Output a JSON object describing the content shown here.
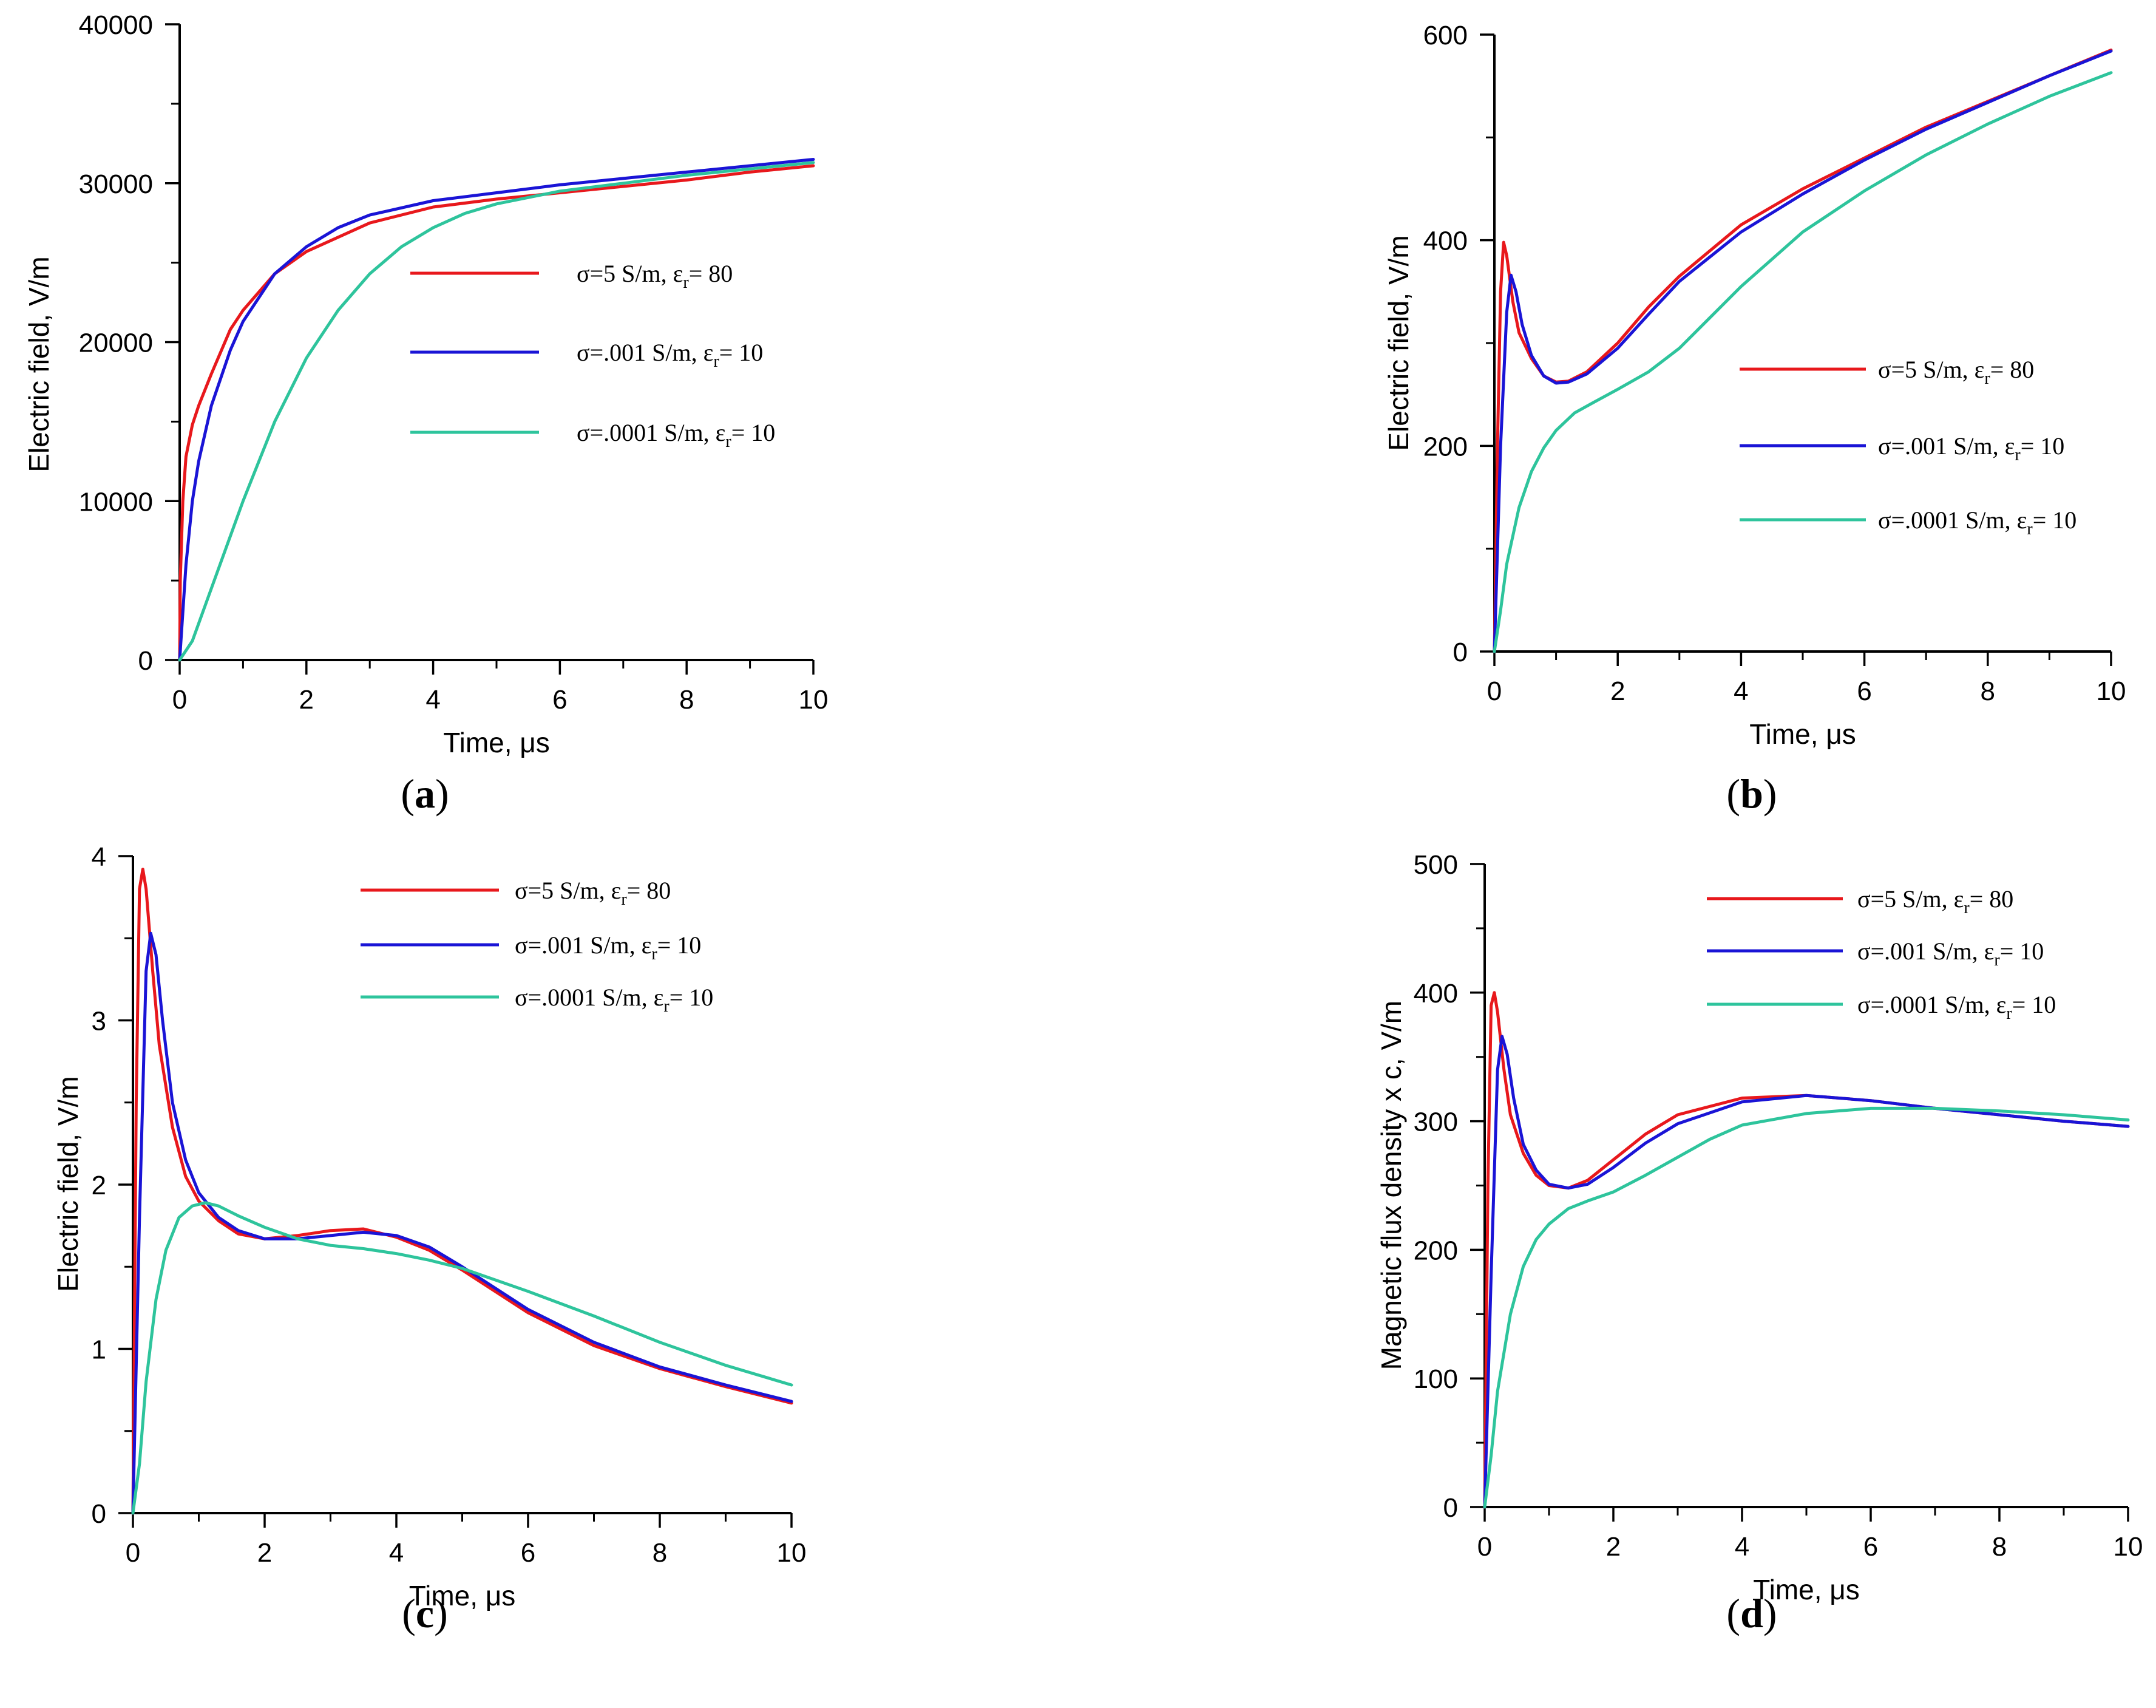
{
  "figure": {
    "colors": {
      "red": "#e8181c",
      "blue": "#1a14d6",
      "teal": "#2ec49c",
      "axis": "#000000"
    }
  },
  "chart_data": [
    {
      "panel": "a",
      "caption": "a",
      "type": "line",
      "xlabel": "Time, μs",
      "ylabel": "Electric field, V/m",
      "xlim": [
        0,
        10
      ],
      "ylim": [
        0,
        40000
      ],
      "xticks": [
        0,
        2,
        4,
        6,
        8,
        10
      ],
      "xtick_labels": [
        "0",
        "2",
        "4",
        "6",
        "8",
        "10"
      ],
      "yticks": [
        0,
        10000,
        20000,
        30000,
        40000
      ],
      "ytick_labels": [
        "0",
        "10000",
        "20000",
        "30000",
        "40000"
      ],
      "x_minor": 1,
      "y_minor": 5000,
      "series": [
        {
          "name": "σ=5 S/m, ε",
          "sub": "r",
          "suffix": "= 80",
          "color": "#e8181c",
          "x": [
            0,
            0.01,
            0.05,
            0.1,
            0.2,
            0.3,
            0.5,
            0.8,
            1.0,
            1.5,
            2.0,
            3.0,
            4.0,
            5.0,
            6.0,
            7.0,
            8.0,
            9.0,
            10.0
          ],
          "y": [
            0,
            5000,
            10000,
            12800,
            14800,
            16000,
            18000,
            20800,
            22000,
            24300,
            25700,
            27500,
            28500,
            29000,
            29400,
            29800,
            30200,
            30700,
            31100
          ]
        },
        {
          "name": "σ=.001 S/m, ε",
          "sub": "r",
          "suffix": "= 10",
          "color": "#1a14d6",
          "x": [
            0,
            0.05,
            0.1,
            0.2,
            0.3,
            0.5,
            0.8,
            1.0,
            1.5,
            2.0,
            2.5,
            3.0,
            4.0,
            5.0,
            6.0,
            7.0,
            8.0,
            9.0,
            10.0
          ],
          "y": [
            0,
            3000,
            6000,
            10000,
            12500,
            16000,
            19500,
            21300,
            24300,
            26000,
            27200,
            28000,
            28900,
            29400,
            29900,
            30300,
            30700,
            31100,
            31500
          ]
        },
        {
          "name": "σ=.0001 S/m, ε",
          "sub": "r",
          "suffix": "= 10",
          "color": "#2ec49c",
          "x": [
            0,
            0.2,
            0.5,
            1.0,
            1.5,
            2.0,
            2.5,
            3.0,
            3.5,
            4.0,
            4.5,
            5.0,
            5.5,
            6.0,
            7.0,
            8.0,
            9.0,
            10.0
          ],
          "y": [
            0,
            1200,
            4500,
            10000,
            15000,
            19000,
            22000,
            24300,
            26000,
            27200,
            28100,
            28700,
            29100,
            29500,
            30000,
            30500,
            30900,
            31300
          ]
        }
      ]
    },
    {
      "panel": "b",
      "caption": "b",
      "type": "line",
      "xlabel": "Time, μs",
      "ylabel": "Electric field, V/m",
      "xlim": [
        0,
        10
      ],
      "ylim": [
        0,
        600
      ],
      "xticks": [
        0,
        2,
        4,
        6,
        8,
        10
      ],
      "xtick_labels": [
        "0",
        "2",
        "4",
        "6",
        "8",
        "10"
      ],
      "yticks": [
        0,
        200,
        400,
        600
      ],
      "ytick_labels": [
        "0",
        "200",
        "400",
        "600"
      ],
      "x_minor": 1,
      "y_minor": 100,
      "series": [
        {
          "name": "σ=5 S/m, ε",
          "sub": "r",
          "suffix": "= 80",
          "color": "#e8181c",
          "x": [
            0,
            0.05,
            0.1,
            0.15,
            0.2,
            0.3,
            0.4,
            0.6,
            0.8,
            1.0,
            1.2,
            1.5,
            2.0,
            2.5,
            3.0,
            4.0,
            5.0,
            6.0,
            7.0,
            8.0,
            9.0,
            10.0
          ],
          "y": [
            0,
            200,
            350,
            398,
            385,
            340,
            310,
            285,
            268,
            262,
            263,
            272,
            300,
            335,
            365,
            415,
            450,
            480,
            510,
            535,
            560,
            585
          ]
        },
        {
          "name": "σ=.001 S/m, ε",
          "sub": "r",
          "suffix": "= 10",
          "color": "#1a14d6",
          "x": [
            0,
            0.05,
            0.1,
            0.2,
            0.27,
            0.35,
            0.45,
            0.6,
            0.8,
            1.0,
            1.2,
            1.5,
            2.0,
            2.5,
            3.0,
            4.0,
            5.0,
            6.0,
            7.0,
            8.0,
            9.0,
            10.0
          ],
          "y": [
            0,
            100,
            200,
            330,
            366,
            350,
            318,
            288,
            268,
            261,
            262,
            270,
            295,
            328,
            360,
            408,
            445,
            478,
            508,
            534,
            560,
            584
          ]
        },
        {
          "name": "σ=.0001 S/m, ε",
          "sub": "r",
          "suffix": "= 10",
          "color": "#2ec49c",
          "x": [
            0,
            0.1,
            0.2,
            0.4,
            0.6,
            0.8,
            1.0,
            1.3,
            1.6,
            2.0,
            2.5,
            3.0,
            3.5,
            4.0,
            5.0,
            6.0,
            7.0,
            8.0,
            9.0,
            10.0
          ],
          "y": [
            0,
            40,
            85,
            140,
            175,
            198,
            215,
            232,
            242,
            255,
            272,
            295,
            325,
            355,
            408,
            448,
            483,
            513,
            540,
            563
          ]
        }
      ]
    },
    {
      "panel": "c",
      "caption": "c",
      "type": "line",
      "xlabel": "Time, μs",
      "ylabel": "Electric field, V/m",
      "xlim": [
        0,
        10
      ],
      "ylim": [
        0,
        4
      ],
      "xticks": [
        0,
        2,
        4,
        6,
        8,
        10
      ],
      "xtick_labels": [
        "0",
        "2",
        "4",
        "6",
        "8",
        "10"
      ],
      "yticks": [
        0,
        1,
        2,
        3,
        4
      ],
      "ytick_labels": [
        "0",
        "1",
        "2",
        "3",
        "4"
      ],
      "x_minor": 1,
      "y_minor": 0.5,
      "series": [
        {
          "name": "σ=5 S/m, ε",
          "sub": "r",
          "suffix": "= 80",
          "color": "#e8181c",
          "x": [
            0,
            0.05,
            0.1,
            0.15,
            0.2,
            0.3,
            0.4,
            0.6,
            0.8,
            1.0,
            1.3,
            1.6,
            2.0,
            2.5,
            3.0,
            3.5,
            4.0,
            4.5,
            5.0,
            6.0,
            7.0,
            8.0,
            9.0,
            10.0
          ],
          "y": [
            0,
            2.5,
            3.8,
            3.92,
            3.8,
            3.3,
            2.85,
            2.35,
            2.05,
            1.9,
            1.78,
            1.7,
            1.67,
            1.69,
            1.72,
            1.73,
            1.68,
            1.6,
            1.48,
            1.22,
            1.02,
            0.88,
            0.77,
            0.67
          ]
        },
        {
          "name": "σ=.001 S/m, ε",
          "sub": "r",
          "suffix": "= 10",
          "color": "#1a14d6",
          "x": [
            0,
            0.1,
            0.2,
            0.27,
            0.35,
            0.45,
            0.6,
            0.8,
            1.0,
            1.3,
            1.6,
            2.0,
            2.5,
            3.0,
            3.5,
            4.0,
            4.5,
            5.0,
            6.0,
            7.0,
            8.0,
            9.0,
            10.0
          ],
          "y": [
            0,
            1.8,
            3.3,
            3.53,
            3.4,
            3.0,
            2.5,
            2.15,
            1.95,
            1.8,
            1.72,
            1.67,
            1.67,
            1.69,
            1.71,
            1.69,
            1.62,
            1.5,
            1.24,
            1.04,
            0.89,
            0.78,
            0.68
          ]
        },
        {
          "name": "σ=.0001 S/m, ε",
          "sub": "r",
          "suffix": "= 10",
          "color": "#2ec49c",
          "x": [
            0,
            0.1,
            0.2,
            0.35,
            0.5,
            0.7,
            0.9,
            1.1,
            1.3,
            1.6,
            2.0,
            2.5,
            3.0,
            3.5,
            4.0,
            4.5,
            5.0,
            6.0,
            7.0,
            8.0,
            9.0,
            10.0
          ],
          "y": [
            0,
            0.3,
            0.8,
            1.3,
            1.6,
            1.8,
            1.87,
            1.89,
            1.87,
            1.81,
            1.74,
            1.67,
            1.63,
            1.61,
            1.58,
            1.54,
            1.49,
            1.35,
            1.2,
            1.04,
            0.9,
            0.78
          ]
        }
      ]
    },
    {
      "panel": "d",
      "caption": "d",
      "type": "line",
      "xlabel": "Time, μs",
      "ylabel": "Magnetic flux density x c, V/m",
      "xlim": [
        0,
        10
      ],
      "ylim": [
        0,
        500
      ],
      "xticks": [
        0,
        2,
        4,
        6,
        8,
        10
      ],
      "xtick_labels": [
        "0",
        "2",
        "4",
        "6",
        "8",
        "10"
      ],
      "yticks": [
        0,
        100,
        200,
        300,
        400,
        500
      ],
      "ytick_labels": [
        "0",
        "100",
        "200",
        "300",
        "400",
        "500"
      ],
      "x_minor": 1,
      "y_minor": 50,
      "series": [
        {
          "name": "σ=5 S/m, ε",
          "sub": "r",
          "suffix": "= 80",
          "color": "#e8181c",
          "x": [
            0,
            0.05,
            0.1,
            0.15,
            0.2,
            0.3,
            0.4,
            0.6,
            0.8,
            1.0,
            1.3,
            1.6,
            2.0,
            2.5,
            3.0,
            4.0,
            5.0,
            6.0,
            7.0,
            8.0,
            9.0,
            10.0
          ],
          "y": [
            0,
            250,
            390,
            400,
            385,
            340,
            305,
            275,
            258,
            250,
            248,
            254,
            270,
            290,
            305,
            318,
            320,
            316,
            310,
            305,
            300,
            296
          ]
        },
        {
          "name": "σ=.001 S/m, ε",
          "sub": "r",
          "suffix": "= 10",
          "color": "#1a14d6",
          "x": [
            0,
            0.1,
            0.2,
            0.27,
            0.35,
            0.45,
            0.6,
            0.8,
            1.0,
            1.3,
            1.6,
            2.0,
            2.5,
            3.0,
            4.0,
            5.0,
            6.0,
            7.0,
            8.0,
            9.0,
            10.0
          ],
          "y": [
            0,
            180,
            340,
            366,
            352,
            318,
            282,
            262,
            251,
            248,
            251,
            264,
            283,
            298,
            315,
            320,
            316,
            310,
            305,
            300,
            296
          ]
        },
        {
          "name": "σ=.0001 S/m, ε",
          "sub": "r",
          "suffix": "= 10",
          "color": "#2ec49c",
          "x": [
            0,
            0.1,
            0.2,
            0.4,
            0.6,
            0.8,
            1.0,
            1.3,
            1.6,
            2.0,
            2.5,
            3.0,
            3.5,
            4.0,
            5.0,
            6.0,
            7.0,
            8.0,
            9.0,
            10.0
          ],
          "y": [
            0,
            40,
            90,
            150,
            187,
            208,
            220,
            232,
            238,
            245,
            258,
            272,
            286,
            297,
            306,
            310,
            310,
            308,
            305,
            301
          ]
        }
      ]
    }
  ]
}
